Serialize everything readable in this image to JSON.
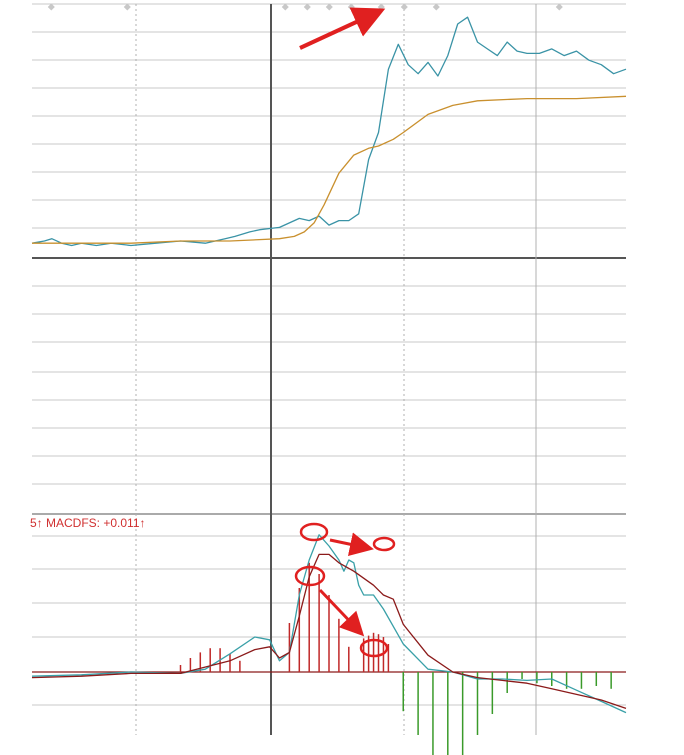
{
  "chart_data": [
    {
      "type": "line",
      "panel": "price",
      "title": "",
      "xlabel": "",
      "ylabel": "",
      "grid": true,
      "x_range": [
        0,
        240
      ],
      "ylim": [
        0,
        100
      ],
      "colors": {
        "price": "#3a93a6",
        "average": "#c9902e",
        "annotation": "#e02020"
      },
      "series": [
        {
          "role": "price",
          "x": [
            0,
            5,
            8,
            12,
            16,
            20,
            26,
            32,
            40,
            50,
            60,
            70,
            78,
            82,
            88,
            92,
            100,
            104,
            108,
            112,
            116,
            120,
            124,
            128,
            132,
            136,
            140,
            144,
            148,
            152,
            156,
            160,
            164,
            168,
            172,
            176,
            180,
            184,
            188,
            192,
            196,
            200,
            205,
            210,
            215,
            220,
            225,
            230,
            235,
            240
          ],
          "values": [
            3,
            4,
            5,
            3,
            2,
            3,
            2,
            3,
            2,
            3,
            4,
            3,
            5,
            6,
            8,
            9,
            10,
            12,
            14,
            13,
            15,
            11,
            13,
            13,
            16,
            40,
            52,
            80,
            91,
            82,
            78,
            83,
            77,
            86,
            100,
            103,
            92,
            89,
            86,
            92,
            88,
            87,
            87,
            89,
            86,
            88,
            84,
            82,
            78,
            80
          ]
        },
        {
          "role": "average",
          "x": [
            0,
            20,
            40,
            60,
            80,
            100,
            106,
            110,
            114,
            118,
            124,
            130,
            136,
            140,
            146,
            150,
            160,
            170,
            180,
            200,
            220,
            240
          ],
          "values": [
            3,
            3,
            3,
            4,
            4,
            5,
            6,
            8,
            12,
            20,
            34,
            42,
            45,
            46,
            49,
            52,
            60,
            64,
            66,
            67,
            67,
            68
          ]
        }
      ]
    },
    {
      "type": "line",
      "panel": "indicator",
      "title": "",
      "xlabel": "",
      "ylabel": "",
      "grid": true,
      "x_range": [
        0,
        240
      ],
      "ylim": [
        -1,
        1
      ],
      "header": "5↑ MACDFS: +0.011↑",
      "colors": {
        "dif": "#3aa0a8",
        "dea": "#8b1a1a",
        "positive_bar": "#c02828",
        "negative_bar": "#3a9a2a",
        "zero_line": "#8b1a1a"
      },
      "series": [
        {
          "role": "dif",
          "x": [
            0,
            20,
            40,
            60,
            70,
            80,
            90,
            96,
            100,
            104,
            108,
            112,
            116,
            120,
            124,
            126,
            128,
            130,
            132,
            134,
            138,
            142,
            150,
            160,
            170,
            180,
            190,
            200,
            210,
            220,
            230,
            240
          ],
          "values": [
            -0.03,
            -0.02,
            0,
            -0.01,
            0.02,
            0.13,
            0.25,
            0.23,
            0.08,
            0.14,
            0.55,
            0.8,
            0.98,
            0.9,
            0.8,
            0.72,
            0.8,
            0.78,
            0.62,
            0.55,
            0.55,
            0.45,
            0.2,
            0.02,
            0.0,
            -0.05,
            -0.05,
            -0.06,
            -0.05,
            -0.13,
            -0.21,
            -0.29
          ]
        },
        {
          "role": "dea",
          "x": [
            0,
            20,
            40,
            60,
            80,
            90,
            96,
            100,
            104,
            108,
            112,
            116,
            120,
            124,
            130,
            138,
            142,
            146,
            150,
            160,
            170,
            180,
            190,
            200,
            210,
            220,
            230,
            240
          ],
          "values": [
            -0.04,
            -0.03,
            -0.01,
            -0.01,
            0.08,
            0.16,
            0.18,
            0.1,
            0.14,
            0.4,
            0.68,
            0.84,
            0.84,
            0.78,
            0.72,
            0.62,
            0.55,
            0.52,
            0.34,
            0.12,
            0.0,
            -0.04,
            -0.06,
            -0.08,
            -0.12,
            -0.16,
            -0.2,
            -0.26
          ]
        },
        {
          "role": "histogram",
          "x": [
            60,
            64,
            68,
            72,
            76,
            80,
            84,
            88,
            92,
            96,
            100,
            104,
            108,
            112,
            116,
            120,
            124,
            128,
            132,
            134,
            136,
            138,
            140,
            142,
            144,
            146,
            150,
            156,
            162,
            168,
            174,
            180,
            186,
            192,
            198,
            204,
            210,
            216,
            222,
            228,
            234
          ],
          "values": [
            0.05,
            0.1,
            0.14,
            0.17,
            0.17,
            0.13,
            0.08,
            0,
            0,
            0,
            0,
            0.35,
            0.6,
            0.78,
            0.7,
            0.55,
            0.38,
            0.18,
            0,
            0.24,
            0.26,
            0.28,
            0.27,
            0.25,
            0.2,
            0,
            -0.28,
            -0.45,
            -0.6,
            -0.65,
            -0.6,
            -0.45,
            -0.3,
            -0.15,
            -0.05,
            -0.08,
            -0.1,
            -0.12,
            -0.12,
            -0.1,
            -0.12
          ]
        }
      ]
    }
  ],
  "annotations": {
    "price_peak_arrow": "up-right",
    "indicator_marks": [
      "circle-peak-1",
      "circle-peak-2",
      "circle-bar-1",
      "circle-bar-2"
    ]
  }
}
